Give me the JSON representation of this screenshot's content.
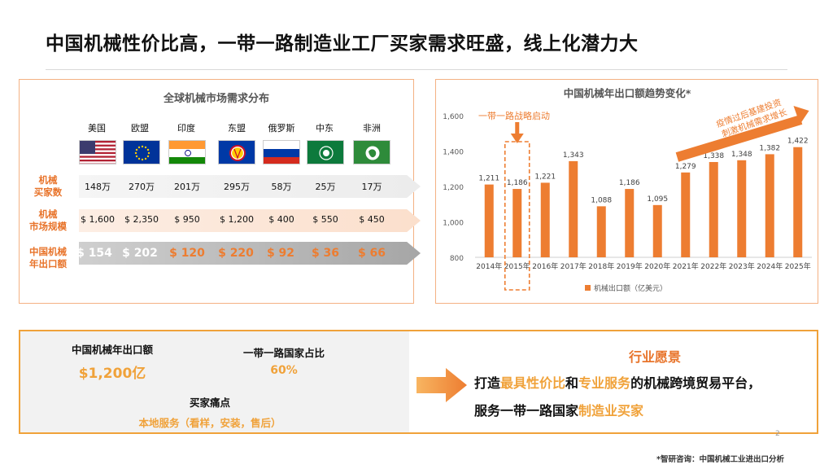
{
  "title": "中国机械性价比高，一带一路制造业工厂买家需求旺盛，线上化潜力大",
  "left_panel": {
    "title": "全球机械市场需求分布",
    "regions": [
      "美国",
      "欧盟",
      "印度",
      "东盟",
      "俄罗斯",
      "中东",
      "非洲"
    ],
    "flag_icons": [
      "usa-flag-icon",
      "eu-flag-icon",
      "india-flag-icon",
      "asean-flag-icon",
      "russia-flag-icon",
      "middle-east-flag-icon",
      "africa-flag-icon"
    ],
    "row_labels": [
      [
        "机械",
        "买家数"
      ],
      [
        "机械",
        "市场规模"
      ],
      [
        "中国机械",
        "年出口额"
      ]
    ],
    "buyers": [
      "148万",
      "270万",
      "201万",
      "295万",
      "58万",
      "25万",
      "17万"
    ],
    "market_size": [
      "$ 1,600",
      "$ 2,350",
      "$ 950",
      "$ 1,200",
      "$ 400",
      "$ 550",
      "$ 450"
    ],
    "export": [
      "$ 154",
      "$ 202",
      "$ 120",
      "$ 220",
      "$ 92",
      "$ 36",
      "$ 66"
    ]
  },
  "chart_data": {
    "type": "bar",
    "title": "中国机械年出口额趋势变化*",
    "categories": [
      "2014年",
      "2015年",
      "2016年",
      "2017年",
      "2018年",
      "2019年",
      "2020年",
      "2021年",
      "2022年",
      "2023年",
      "2024年",
      "2025年"
    ],
    "series": [
      {
        "name": "机械出口额（亿美元）",
        "values": [
          1211,
          1186,
          1221,
          1343,
          1088,
          1186,
          1095,
          1279,
          1338,
          1348,
          1382,
          1422
        ]
      }
    ],
    "value_labels": [
      "1,211",
      "1,186",
      "1,221",
      "1,343",
      "1,088",
      "1,186",
      "1,095",
      "1,279",
      "1,338",
      "1,348",
      "1,382",
      "1,422"
    ],
    "yticks": [
      "800",
      "1,000",
      "1,200",
      "1,400",
      "1,600"
    ],
    "ylim": [
      800,
      1600
    ],
    "bar_color": "#ed7d31",
    "legend_position": "bottom",
    "annotations": {
      "belt_road": "一带一路战略启动",
      "growth_line1": "疫情过后基建投资",
      "growth_line2": "刺激机械需求增长"
    }
  },
  "kpis": {
    "export_label": "中国机械年出口额",
    "export_value": "$1,200亿",
    "share_label": "一带一路国家占比",
    "share_value": "60%",
    "pain_label": "买家痛点",
    "pain_value": "本地服务（看样，安装，售后）"
  },
  "vision": {
    "title": "行业愿景",
    "line1_a": "打造",
    "line1_b": "最具性价比",
    "line1_c": "和",
    "line1_d": "专业服务",
    "line1_e": "的机械跨境贸易平台，",
    "line2_a": "服务一带一路国家",
    "line2_b": "制造业买家"
  },
  "page_number": "2",
  "source": "*智研咨询：中国机械工业进出口分析",
  "colors": {
    "accent": "#ed7d31",
    "gold": "#f0a23a",
    "border": "#f4b183"
  }
}
